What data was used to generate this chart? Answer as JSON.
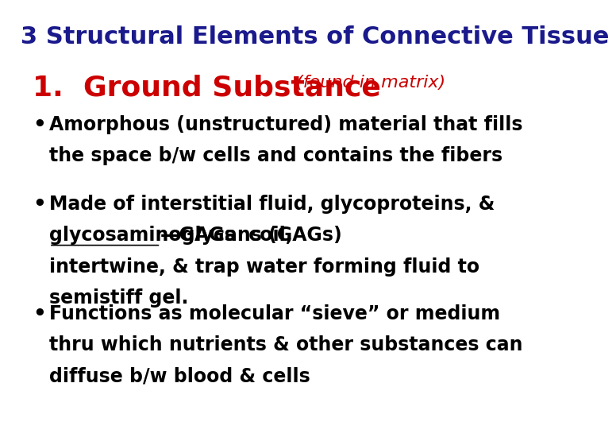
{
  "background_color": "#ffffff",
  "title": "3 Structural Elements of Connective Tissue",
  "title_color": "#1a1a8c",
  "title_fontsize": 22,
  "title_bold": true,
  "heading_number": "1.",
  "heading_main": "  Ground Substance",
  "heading_sub": " (found in matrix)",
  "heading_main_color": "#cc0000",
  "heading_main_fontsize": 26,
  "heading_sub_color": "#cc0000",
  "heading_sub_fontsize": 16,
  "bullet_color": "#000000",
  "bullet_fontsize": 17,
  "bullets": [
    {
      "lines": [
        "Amorphous (unstructured) material that fills",
        "the space b/w cells and contains the fibers"
      ],
      "underline_part": null
    },
    {
      "lines": [
        "Made of interstitial fluid, glycoproteins, &",
        "glycosaminoglycans (GAGs)—GAGs  coil,",
        "intertwine, & trap water forming fluid to",
        "semistiff gel."
      ],
      "underline_part": "glycosaminoglycans (GAGs)"
    },
    {
      "lines": [
        "Functions as molecular “sieve” or medium",
        "thru which nutrients & other substances can",
        "diffuse b/w blood & cells"
      ],
      "underline_part": null
    }
  ]
}
